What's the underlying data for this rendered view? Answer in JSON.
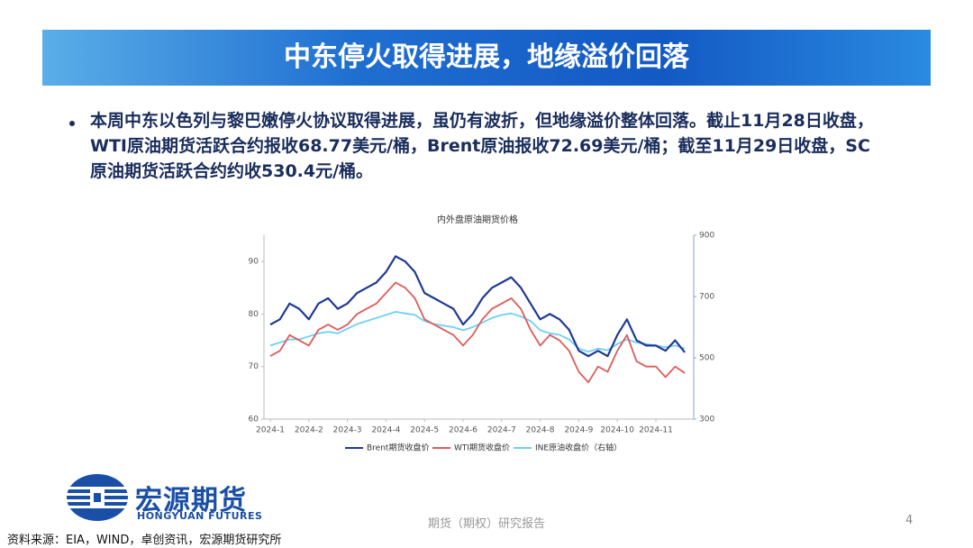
{
  "header": {
    "title": "中东停火取得进展，地缘溢价回落"
  },
  "bullet": "本周中东以色列与黎巴嫩停火协议取得进展，虽仍有波折，但地缘溢价整体回落。截止11月28日收盘，WTI原油期货活跃合约报收68.77美元/桶，Brent原油报收72.69美元/桶；截至11月29日收盘，SC原油期货活跃合约约收530.4元/桶。",
  "chart_data": {
    "type": "line",
    "title": "内外盘原油期货价格",
    "categories": [
      "2024-1",
      null,
      null,
      null,
      "2024-2",
      null,
      null,
      null,
      "2024-3",
      null,
      null,
      null,
      "2024-4",
      null,
      null,
      null,
      "2024-5",
      null,
      null,
      null,
      "2024-6",
      null,
      null,
      null,
      "2024-7",
      null,
      null,
      null,
      "2024-8",
      null,
      null,
      null,
      "2024-9",
      null,
      null,
      null,
      "2024-10",
      null,
      null,
      null,
      "2024-11",
      null,
      null,
      null
    ],
    "series": [
      {
        "name": "Brent期货收盘价",
        "color": "#1f3a93",
        "values": [
          78,
          79,
          82,
          81,
          79,
          82,
          83,
          81,
          82,
          84,
          85,
          86,
          88,
          91,
          90,
          88,
          84,
          83,
          82,
          81,
          78,
          80,
          83,
          85,
          86,
          87,
          85,
          82,
          79,
          80,
          79,
          77,
          73,
          72,
          73,
          72,
          76,
          79,
          75,
          74,
          74,
          73,
          75,
          72.69
        ]
      },
      {
        "name": "WTI期货收盘价",
        "color": "#e05a5a",
        "values": [
          72,
          73,
          76,
          75,
          74,
          77,
          78,
          77,
          78,
          80,
          81,
          82,
          84,
          86,
          85,
          83,
          79,
          78,
          77,
          76,
          74,
          76,
          79,
          81,
          82,
          83,
          81,
          77,
          74,
          76,
          75,
          73,
          69,
          67,
          70,
          69,
          73,
          76,
          71,
          70,
          70,
          68,
          70,
          68.77
        ]
      },
      {
        "name": "INE原油收盘价（右轴）",
        "color": "#6ecff6",
        "axis": "y2",
        "values": [
          540,
          550,
          560,
          560,
          570,
          580,
          585,
          580,
          595,
          610,
          620,
          630,
          640,
          650,
          645,
          640,
          620,
          610,
          605,
          600,
          590,
          600,
          615,
          630,
          640,
          645,
          635,
          620,
          590,
          580,
          575,
          560,
          530,
          520,
          530,
          525,
          545,
          560,
          550,
          545,
          540,
          535,
          540,
          530.4
        ]
      }
    ],
    "ylim": [
      60,
      95
    ],
    "yticks": [
      60,
      70,
      80,
      90
    ],
    "y2lim": [
      300,
      900
    ],
    "y2ticks": [
      300,
      500,
      700,
      900
    ],
    "legend": "bottom"
  },
  "logo": {
    "name": "宏源期货",
    "english": "HONGYUAN FUTURES"
  },
  "footer": "期货（期权）研究报告",
  "page_number": "4",
  "source": "资料来源：EIA，WIND，卓创资讯，宏源期货研究所"
}
